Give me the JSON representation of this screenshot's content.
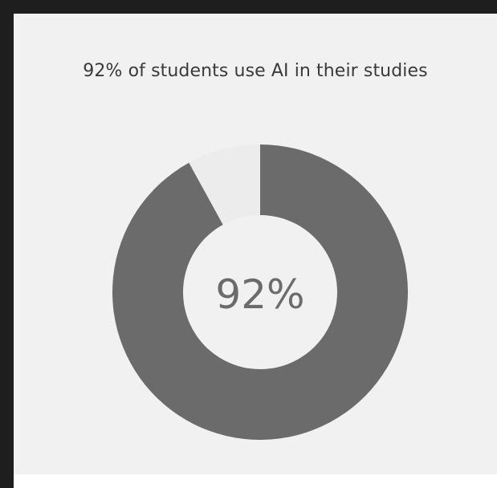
{
  "colors": {
    "frame": "#1e1e1e",
    "panel_background": "#f1f1f1",
    "title_text": "#3a3a3a",
    "filled_segment": "#6b6b6b",
    "remainder_segment": "#ececec",
    "center_text": "#6b6b6b"
  },
  "chart_data": {
    "type": "pie",
    "style": "donut",
    "title": "92% of students use AI in their studies",
    "center_label": "92%",
    "slices": [
      {
        "value": 92,
        "color": "#6b6b6b"
      },
      {
        "value": 8,
        "color": "#ececec"
      }
    ],
    "legend": "none"
  }
}
